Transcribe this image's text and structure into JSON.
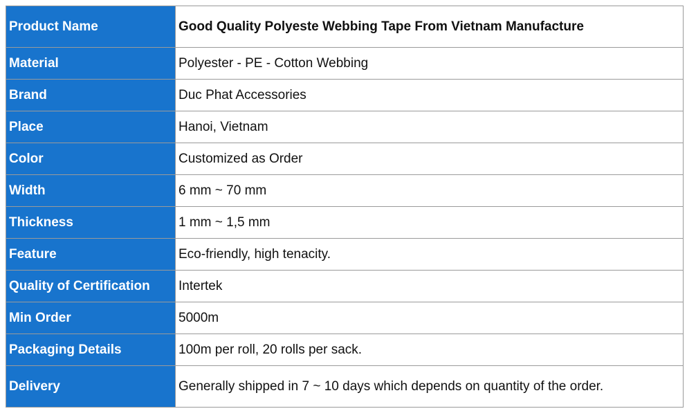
{
  "table": {
    "rows": [
      [
        "Product Name",
        "Good Quality Polyeste Webbing Tape From Vietnam Manufacture"
      ],
      [
        "Material",
        "Polyester - PE - Cotton Webbing"
      ],
      [
        "Brand",
        "Duc Phat Accessories"
      ],
      [
        "Place",
        "Hanoi, Vietnam"
      ],
      [
        "Color",
        "Customized as Order"
      ],
      [
        "Width",
        "6 mm ~ 70 mm"
      ],
      [
        "Thickness",
        "1 mm ~ 1,5 mm"
      ],
      [
        "Feature",
        "Eco-friendly, high tenacity."
      ],
      [
        "Quality of Certification",
        "Intertek"
      ],
      [
        "Min Order",
        "5000m"
      ],
      [
        "Packaging Details",
        "100m per roll, 20 rolls per sack."
      ],
      [
        "Delivery",
        "Generally shipped in 7 ~ 10 days which depends on quantity of the order."
      ]
    ]
  }
}
